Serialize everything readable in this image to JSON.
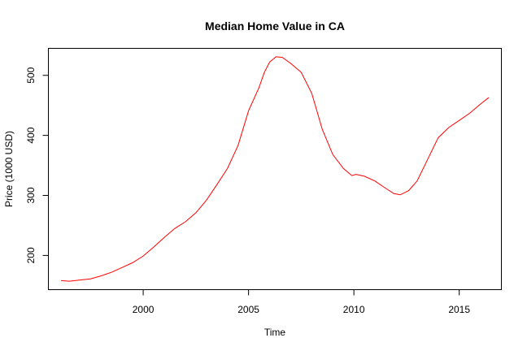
{
  "chart_data": {
    "type": "line",
    "title": "Median Home Value in CA",
    "xlabel": "Time",
    "ylabel": "Price (1000 USD)",
    "xlim": [
      1995.5,
      2017.0
    ],
    "ylim": [
      143,
      545
    ],
    "xticks": [
      2000,
      2005,
      2010,
      2015
    ],
    "yticks": [
      200,
      300,
      400,
      500
    ],
    "grid": false,
    "line_color": "#ff0000",
    "series": [
      {
        "x": [
          1996.1,
          1996.5,
          1997.0,
          1997.5,
          1998.0,
          1998.5,
          1999.0,
          1999.5,
          2000.0,
          2000.5,
          2001.0,
          2001.5,
          2002.0,
          2002.5,
          2003.0,
          2003.5,
          2004.0,
          2004.5,
          2005.0,
          2005.5,
          2005.75,
          2006.0,
          2006.3,
          2006.6,
          2007.0,
          2007.5,
          2008.0,
          2008.5,
          2009.0,
          2009.5,
          2009.9,
          2010.1,
          2010.5,
          2011.0,
          2011.5,
          2011.9,
          2012.2,
          2012.6,
          2013.0,
          2013.5,
          2014.0,
          2014.5,
          2015.0,
          2015.5,
          2016.0,
          2016.4
        ],
        "values": [
          158,
          157,
          159,
          161,
          166,
          172,
          180,
          188,
          199,
          214,
          230,
          245,
          256,
          271,
          292,
          318,
          345,
          383,
          441,
          480,
          505,
          522,
          531,
          530,
          520,
          505,
          470,
          410,
          368,
          345,
          333,
          335,
          332,
          324,
          312,
          303,
          301,
          308,
          324,
          360,
          396,
          413,
          425,
          437,
          452,
          463
        ]
      }
    ]
  }
}
